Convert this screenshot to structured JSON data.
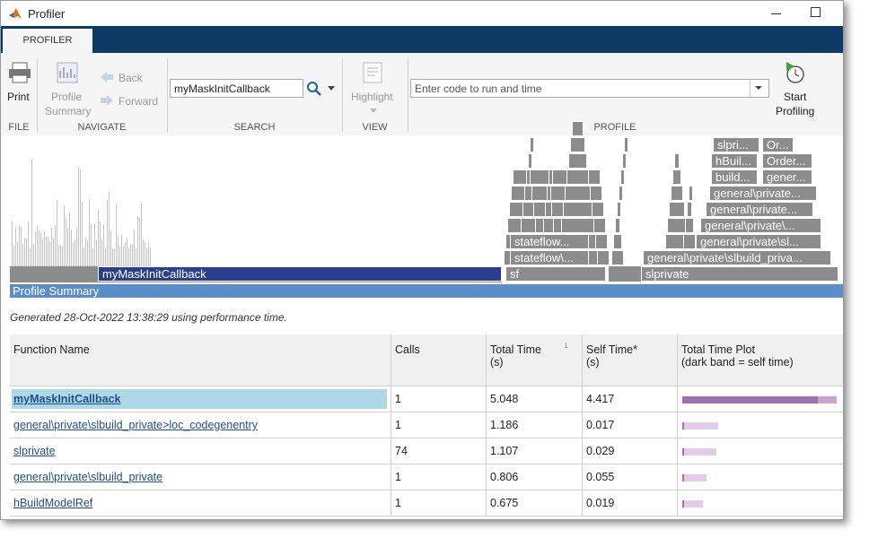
{
  "window": {
    "title": "Profiler"
  },
  "tabs": [
    "PROFILER"
  ],
  "toolstrip": {
    "file": {
      "label": "FILE",
      "print": "Print"
    },
    "navigate": {
      "label": "NAVIGATE",
      "profile_summary": [
        "Profile",
        "Summary"
      ],
      "back": "Back",
      "forward": "Forward"
    },
    "search": {
      "label": "SEARCH",
      "value": "myMaskInitCallback"
    },
    "view": {
      "label": "VIEW",
      "highlight": "Highlight"
    },
    "profile": {
      "label": "PROFILE",
      "placeholder": "Enter code to run and time",
      "start": [
        "Start",
        "Profiling"
      ]
    }
  },
  "flame_graph": {
    "labels": [
      "myMaskInitCallback",
      "sf",
      "slprivate",
      "stateflow\\...",
      "stateflow...",
      "general\\private\\slbuild_priva...",
      "general\\private\\sl...",
      "general\\private\\...",
      "general\\private...",
      "general\\private...",
      "build...",
      "gener...",
      "hBuil...",
      "Order...",
      "slpri...",
      "Or..."
    ]
  },
  "summary": {
    "title": "Profile Summary",
    "generated": "Generated 28-Oct-2022 13:38:29 using performance time."
  },
  "table": {
    "columns": [
      [
        "Function Name"
      ],
      [
        "Calls"
      ],
      [
        "Total Time",
        "(s)"
      ],
      [
        "Self Time*",
        "(s)"
      ],
      [
        "Total Time Plot",
        "(dark band = self time)"
      ]
    ],
    "rows": [
      [
        "myMaskInitCallback",
        1,
        5.048,
        4.417
      ],
      [
        "general\\private\\slbuild_private>loc_codegenentry",
        1,
        1.186,
        0.017
      ],
      [
        "slprivate",
        74,
        1.107,
        0.029
      ],
      [
        "general\\private\\slbuild_private",
        1,
        0.806,
        0.055
      ],
      [
        "hBuildModelRef",
        1,
        0.675,
        0.019
      ]
    ]
  }
}
